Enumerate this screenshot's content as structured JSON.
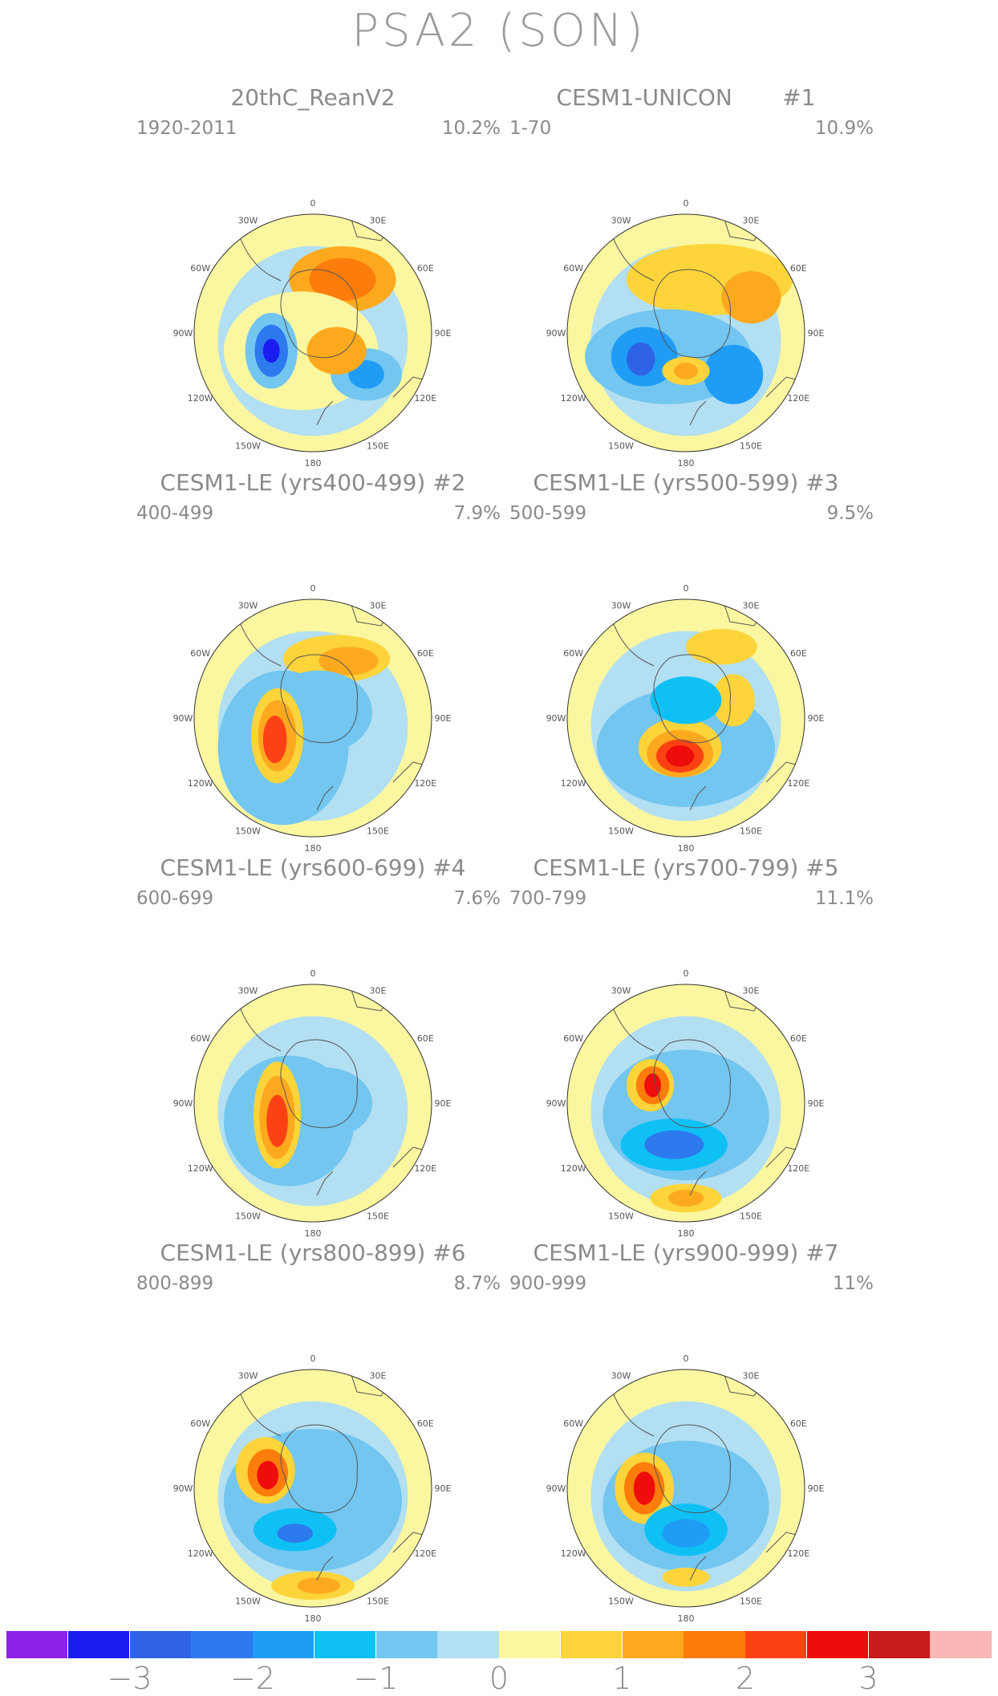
{
  "title": "PSA2 (SON)",
  "panels": [
    {
      "title": "20thC_ReanV2",
      "years": "1920-2011",
      "pct": "10.2%"
    },
    {
      "title": "CESM1-UNICON       #1",
      "years": "1-70",
      "pct": "10.9%"
    },
    {
      "title": "CESM1-LE (yrs400-499) #2",
      "years": "400-499",
      "pct": "7.9%"
    },
    {
      "title": "CESM1-LE (yrs500-599) #3",
      "years": "500-599",
      "pct": "9.5%"
    },
    {
      "title": "CESM1-LE (yrs600-699) #4",
      "years": "600-699",
      "pct": "7.6%"
    },
    {
      "title": "CESM1-LE (yrs700-799) #5",
      "years": "700-799",
      "pct": "11.1%"
    },
    {
      "title": "CESM1-LE (yrs800-899) #6",
      "years": "800-899",
      "pct": "8.7%"
    },
    {
      "title": "CESM1-LE (yrs900-999) #7",
      "years": "900-999",
      "pct": "11%"
    }
  ],
  "longitude_labels": [
    "0",
    "30E",
    "60E",
    "90E",
    "120E",
    "150E",
    "180",
    "150W",
    "120W",
    "90W",
    "60W",
    "30W"
  ],
  "colorbar": {
    "colors": [
      "#8e20e8",
      "#1a1cf0",
      "#2f63e6",
      "#2d79ee",
      "#1f9cf5",
      "#0fc0f5",
      "#72c6f0",
      "#b2dff2",
      "#fbf7a0",
      "#fdd43a",
      "#fda91e",
      "#fc7c0c",
      "#fc4214",
      "#ee0c0c",
      "#c81c1c",
      "#fbb6b6"
    ],
    "tick_labels": [
      "−3",
      "−2",
      "−1",
      "0",
      "1",
      "2",
      "3"
    ]
  }
}
